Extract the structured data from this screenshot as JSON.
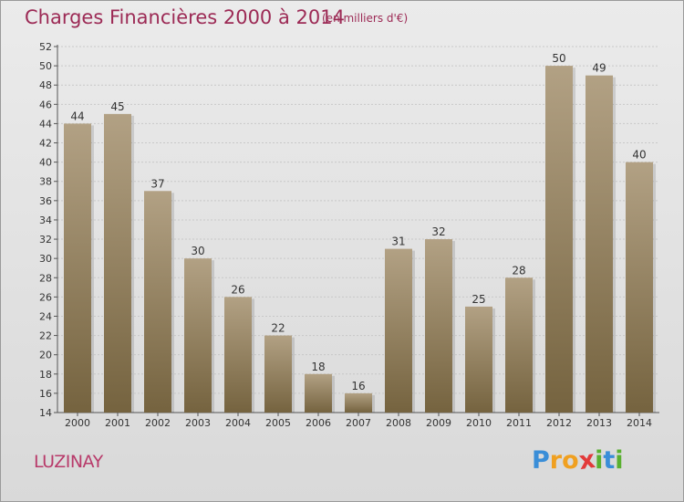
{
  "title": "Charges Financières 2000 à 2014",
  "subtitle": "(en milliers d'€)",
  "place_name": "LUZINAY",
  "logo": {
    "text": "Proxiti",
    "letters": [
      "P",
      "r",
      "o",
      "x",
      "i",
      "t",
      "i"
    ],
    "colors": [
      "#3a8ed8",
      "#f0a020",
      "#f0a020",
      "#e23a3a",
      "#5ab030",
      "#3a8ed8",
      "#5ab030"
    ]
  },
  "colors": {
    "title": "#9c2a55",
    "bar_light": "#b2a184",
    "bar_dark": "#75633f",
    "axis": "#555555"
  },
  "chart_data": {
    "type": "bar",
    "title": "Charges Financières 2000 à 2014",
    "subtitle": "(en milliers d'€)",
    "categories": [
      "2000",
      "2001",
      "2002",
      "2003",
      "2004",
      "2005",
      "2006",
      "2007",
      "2008",
      "2009",
      "2010",
      "2011",
      "2012",
      "2013",
      "2014"
    ],
    "values": [
      44,
      45,
      37,
      30,
      26,
      22,
      18,
      16,
      31,
      32,
      25,
      28,
      50,
      49,
      40
    ],
    "ylim": [
      14,
      52
    ],
    "yticks": [
      14,
      16,
      18,
      20,
      22,
      24,
      26,
      28,
      30,
      32,
      34,
      36,
      38,
      40,
      42,
      44,
      46,
      48,
      50,
      52
    ],
    "grid": true
  }
}
